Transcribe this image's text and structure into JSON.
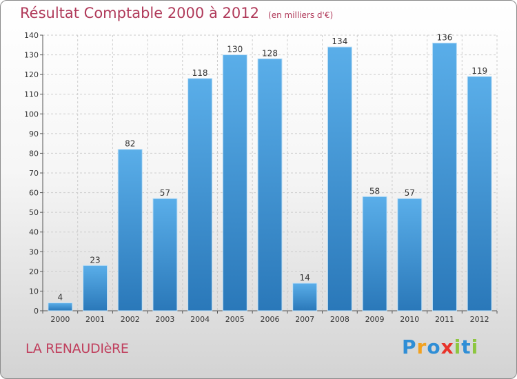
{
  "header": {
    "title": "Résultat Comptable 2000 à 2012",
    "subtitle": "(en milliers d'€)"
  },
  "footer": {
    "commune": "LA RENAUDIèRE",
    "logo": {
      "letters": [
        "P",
        "r",
        "o",
        "x",
        "i",
        "t",
        "i"
      ],
      "colors": [
        "#2f8ed6",
        "#f2a11f",
        "#2f8ed6",
        "#e8332a",
        "#8dc63f",
        "#2f8ed6",
        "#8dc63f"
      ]
    }
  },
  "colors": {
    "bar_top": "#5aaee9",
    "bar_bottom": "#2a78b9",
    "axis_text": "#333333",
    "grid": "#cccccc"
  },
  "chart_data": {
    "type": "bar",
    "title": "Résultat Comptable 2000 à 2012",
    "subtitle": "(en milliers d'€)",
    "categories": [
      "2000",
      "2001",
      "2002",
      "2003",
      "2004",
      "2005",
      "2006",
      "2007",
      "2008",
      "2009",
      "2010",
      "2011",
      "2012"
    ],
    "values": [
      4,
      23,
      82,
      57,
      118,
      130,
      128,
      14,
      134,
      58,
      57,
      136,
      119
    ],
    "yticks": [
      0,
      10,
      20,
      30,
      40,
      50,
      60,
      70,
      80,
      90,
      100,
      110,
      120,
      130,
      140
    ],
    "ylim": [
      0,
      140
    ],
    "xlabel": "",
    "ylabel": "",
    "grid": true
  }
}
